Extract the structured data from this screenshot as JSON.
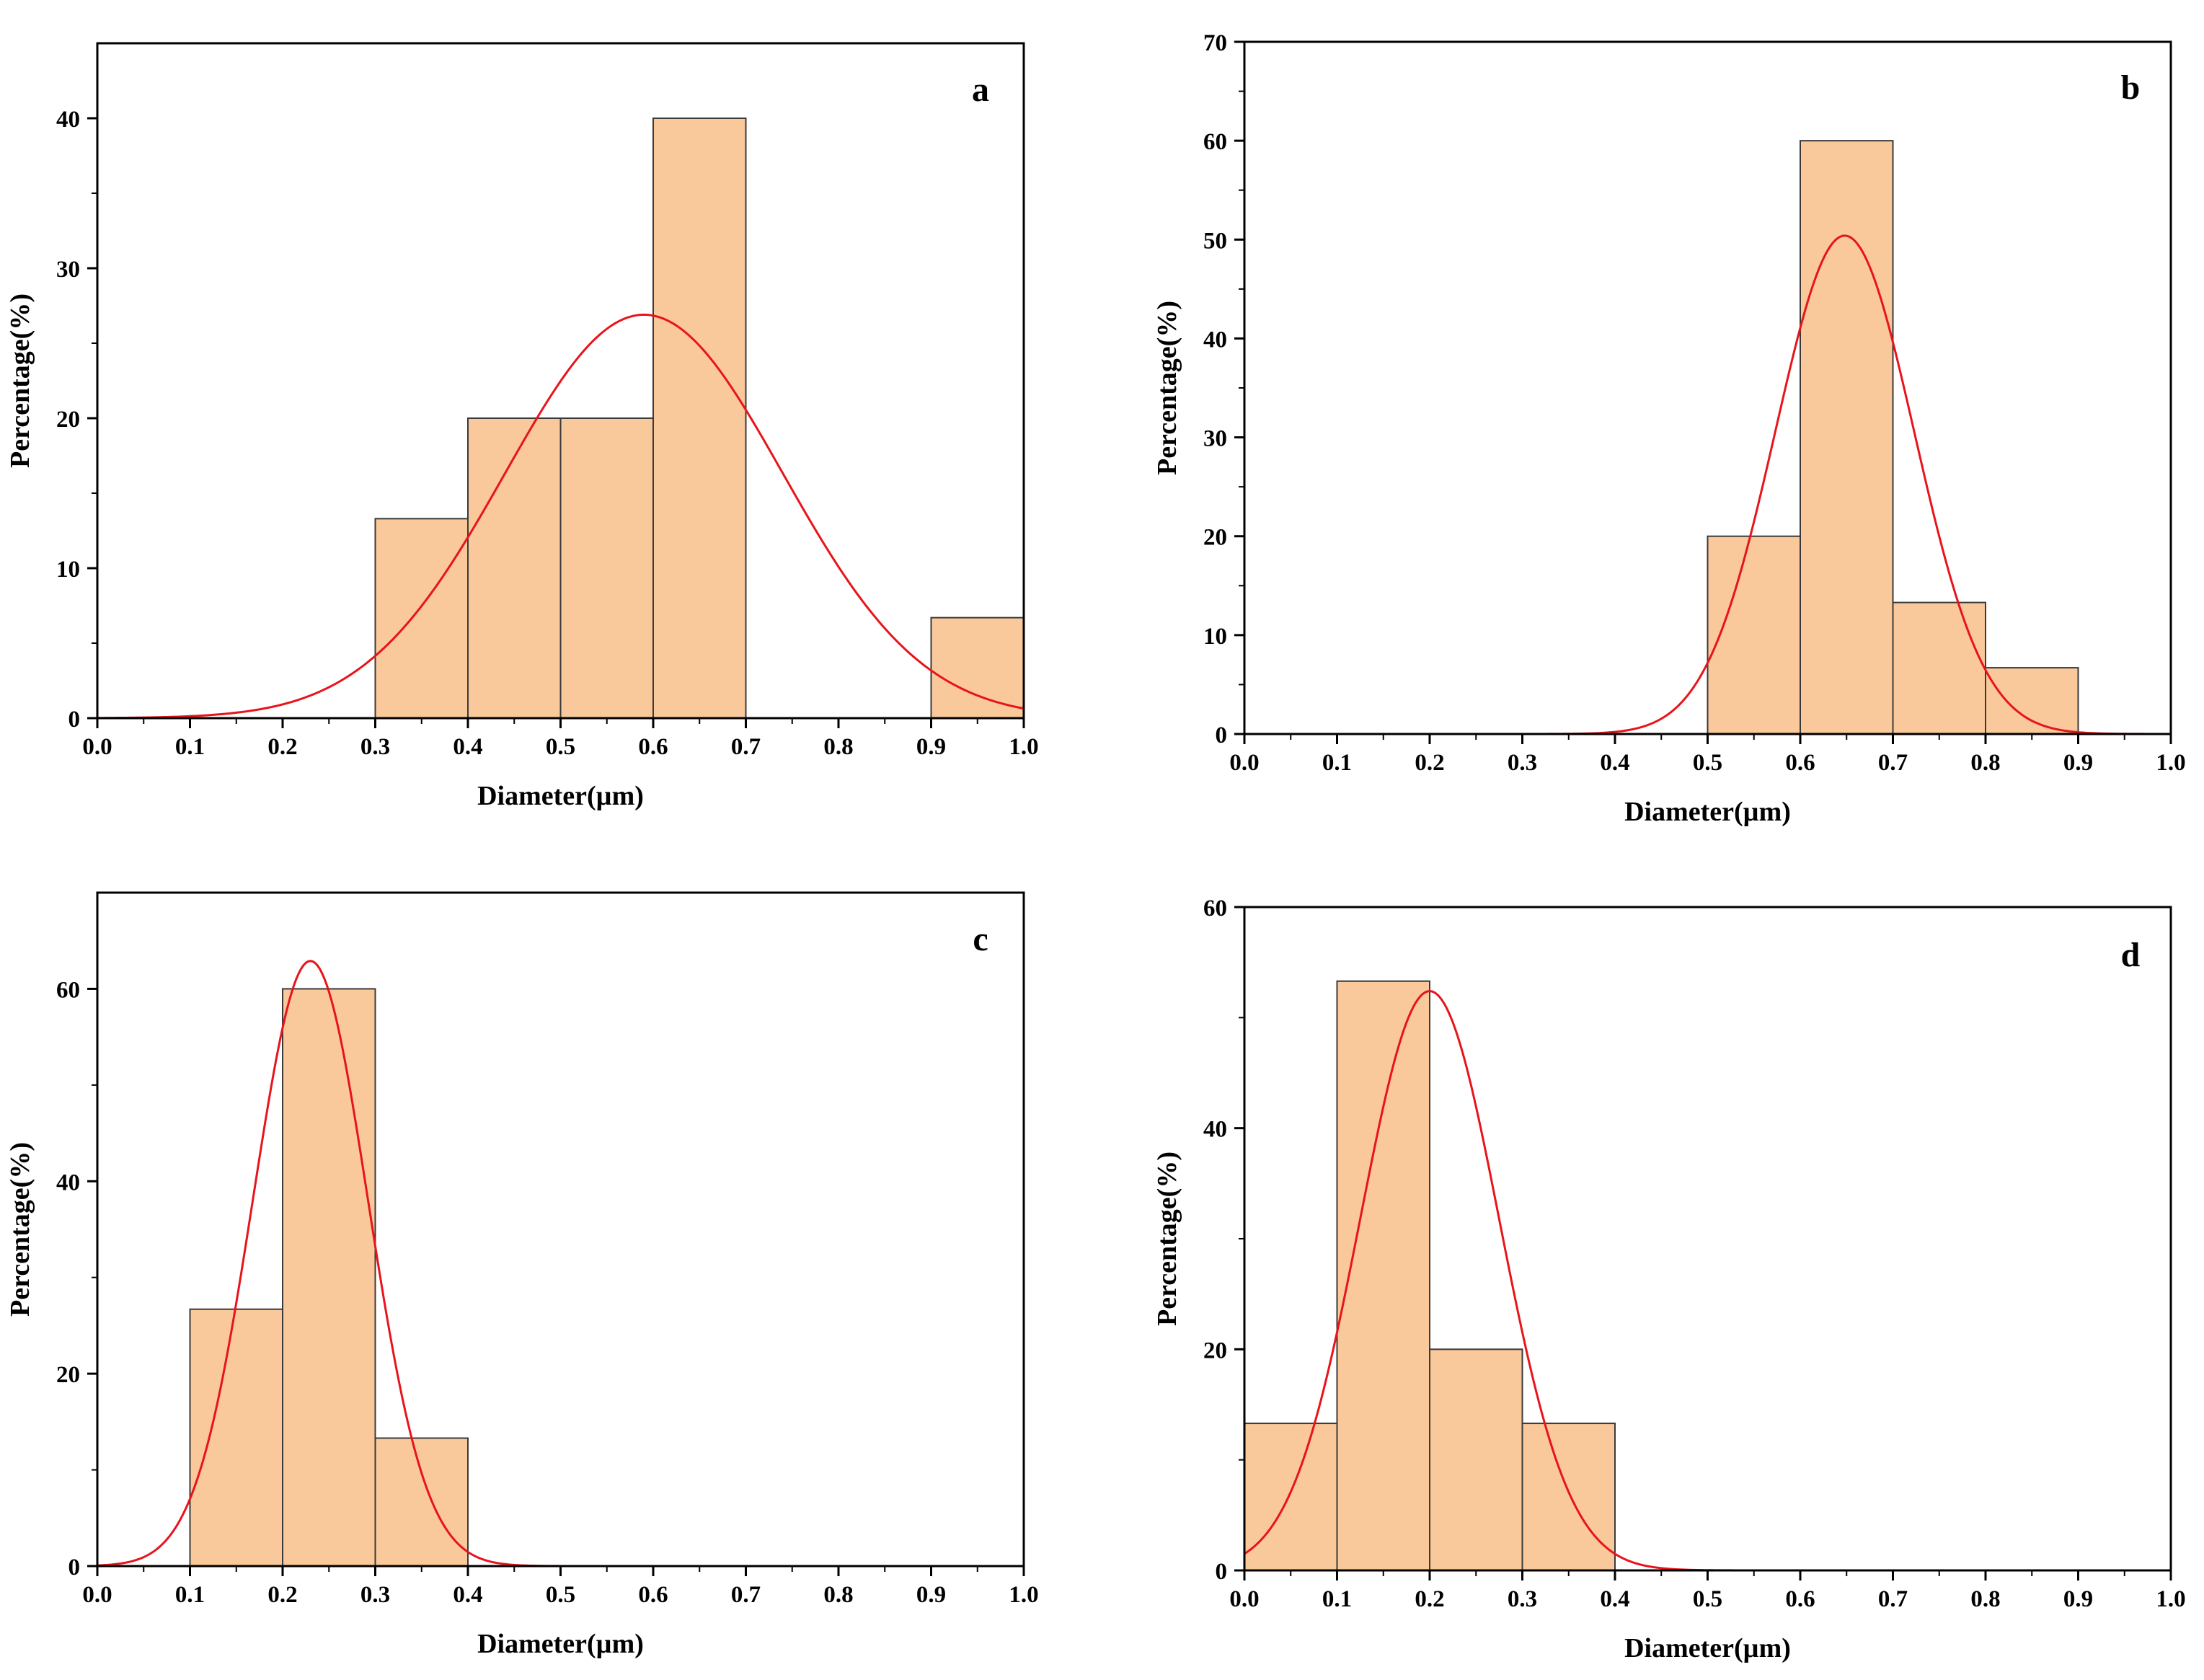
{
  "chart_data": [
    {
      "type": "bar",
      "panel_label": "a",
      "xlabel": "Diameter(µm)",
      "ylabel": "Percentage(%)",
      "xlim": [
        0,
        1
      ],
      "ylim": [
        0,
        45
      ],
      "xticks": [
        "0.0",
        "0.1",
        "0.2",
        "0.3",
        "0.4",
        "0.5",
        "0.6",
        "0.7",
        "0.8",
        "0.9",
        "1.0"
      ],
      "yticks": [
        "0",
        "10",
        "20",
        "30",
        "40"
      ],
      "bins": [
        {
          "from": 0.3,
          "to": 0.4,
          "value": 13.3
        },
        {
          "from": 0.4,
          "to": 0.5,
          "value": 20
        },
        {
          "from": 0.5,
          "to": 0.6,
          "value": 20
        },
        {
          "from": 0.6,
          "to": 0.7,
          "value": 40
        },
        {
          "from": 0.9,
          "to": 1.0,
          "value": 6.7
        }
      ],
      "fit": {
        "type": "normal",
        "mean": 0.59,
        "sigma": 0.15,
        "peak": 26.9
      }
    },
    {
      "type": "bar",
      "panel_label": "b",
      "xlabel": "Diameter(µm)",
      "ylabel": "Percentage(%)",
      "xlim": [
        0,
        1
      ],
      "ylim": [
        0,
        70
      ],
      "xticks": [
        "0.0",
        "0.1",
        "0.2",
        "0.3",
        "0.4",
        "0.5",
        "0.6",
        "0.7",
        "0.8",
        "0.9",
        "1.0"
      ],
      "yticks": [
        "0",
        "10",
        "20",
        "30",
        "40",
        "50",
        "60",
        "70"
      ],
      "bins": [
        {
          "from": 0.5,
          "to": 0.6,
          "value": 20
        },
        {
          "from": 0.6,
          "to": 0.7,
          "value": 60
        },
        {
          "from": 0.7,
          "to": 0.8,
          "value": 13.3
        },
        {
          "from": 0.8,
          "to": 0.9,
          "value": 6.7
        }
      ],
      "fit": {
        "type": "normal",
        "mean": 0.648,
        "sigma": 0.075,
        "peak": 50.4
      }
    },
    {
      "type": "bar",
      "panel_label": "c",
      "xlabel": "Diameter(µm)",
      "ylabel": "Percentage(%)",
      "xlim": [
        0,
        1
      ],
      "ylim": [
        0,
        70
      ],
      "xticks": [
        "0.0",
        "0.1",
        "0.2",
        "0.3",
        "0.4",
        "0.5",
        "0.6",
        "0.7",
        "0.8",
        "0.9",
        "1.0"
      ],
      "yticks": [
        "0",
        "20",
        "40",
        "60"
      ],
      "bins": [
        {
          "from": 0.1,
          "to": 0.2,
          "value": 26.7
        },
        {
          "from": 0.2,
          "to": 0.3,
          "value": 60
        },
        {
          "from": 0.3,
          "to": 0.4,
          "value": 13.3
        }
      ],
      "fit": {
        "type": "normal",
        "mean": 0.23,
        "sigma": 0.062,
        "peak": 62.9
      }
    },
    {
      "type": "bar",
      "panel_label": "d",
      "xlabel": "Diameter(µm)",
      "ylabel": "Percentage(%)",
      "xlim": [
        0,
        1
      ],
      "ylim": [
        0,
        60
      ],
      "xticks": [
        "0.0",
        "0.1",
        "0.2",
        "0.3",
        "0.4",
        "0.5",
        "0.6",
        "0.7",
        "0.8",
        "0.9",
        "1.0"
      ],
      "yticks": [
        "0",
        "20",
        "40",
        "60"
      ],
      "bins": [
        {
          "from": 0.0,
          "to": 0.1,
          "value": 13.3
        },
        {
          "from": 0.1,
          "to": 0.2,
          "value": 53.3
        },
        {
          "from": 0.2,
          "to": 0.3,
          "value": 20
        },
        {
          "from": 0.3,
          "to": 0.4,
          "value": 13.3
        }
      ],
      "fit": {
        "type": "normal",
        "mean": 0.2,
        "sigma": 0.075,
        "peak": 52.4
      }
    }
  ],
  "colors": {
    "bar_fill": "#f9c89b",
    "bar_stroke": "#3a3a3a",
    "fit_line": "#e8141b",
    "axis": "#000000"
  }
}
